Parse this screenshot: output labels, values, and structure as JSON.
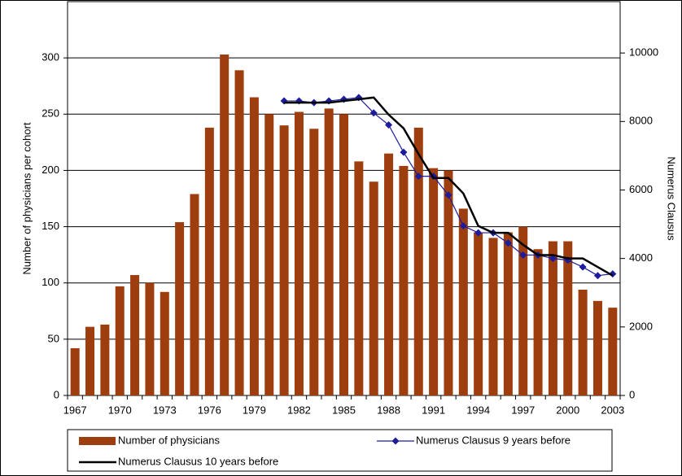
{
  "chart_data": {
    "type": "bar",
    "y_label": "Number of physicians per cohort",
    "y2_label": "Numerus Clausus",
    "categories": [
      "1967",
      null,
      null,
      "1970",
      null,
      null,
      "1973",
      null,
      null,
      "1976",
      null,
      null,
      "1979",
      null,
      null,
      "1982",
      null,
      null,
      "1985",
      null,
      null,
      "1988",
      null,
      null,
      "1991",
      null,
      null,
      "1994",
      null,
      null,
      "1997",
      null,
      null,
      "2000",
      null,
      null,
      "2003"
    ],
    "series": [
      {
        "name": "Number of physicians",
        "type": "bar",
        "color": "#9e3d0d",
        "values": [
          42,
          61,
          63,
          97,
          107,
          100,
          92,
          154,
          179,
          238,
          303,
          289,
          265,
          250,
          240,
          252,
          237,
          255,
          250,
          208,
          190,
          215,
          204,
          238,
          202,
          200,
          166,
          145,
          140,
          145,
          150,
          130,
          137,
          137,
          94,
          84,
          78
        ]
      },
      {
        "name": "Numerus Clausus 9 years before",
        "type": "line",
        "marker": "diamond",
        "color": "#1c1c9c",
        "axis": "y2",
        "values": [
          null,
          null,
          null,
          null,
          null,
          null,
          null,
          null,
          null,
          null,
          null,
          null,
          null,
          null,
          8600,
          8600,
          8550,
          8600,
          8650,
          8700,
          8250,
          7900,
          7100,
          6400,
          6400,
          5850,
          4950,
          4750,
          4750,
          4450,
          4100,
          4100,
          4000,
          3950,
          3750,
          3500,
          3550
        ]
      },
      {
        "name": "Numerus Clausus 10 years before",
        "type": "line",
        "color": "#000000",
        "axis": "y2",
        "values": [
          null,
          null,
          null,
          null,
          null,
          null,
          null,
          null,
          null,
          null,
          null,
          null,
          null,
          null,
          8550,
          8550,
          8550,
          8550,
          8600,
          8650,
          8700,
          8200,
          7800,
          7050,
          6350,
          6350,
          5900,
          4950,
          4750,
          4750,
          4400,
          4100,
          4100,
          4000,
          4000,
          3750,
          3500
        ]
      }
    ],
    "ylim": [
      0,
      350
    ],
    "yticks": [
      0,
      50,
      100,
      150,
      200,
      250,
      300
    ],
    "y2lim": [
      0,
      11500
    ],
    "y2ticks": [
      0,
      2000,
      4000,
      6000,
      8000,
      10000
    ],
    "grid": true
  }
}
